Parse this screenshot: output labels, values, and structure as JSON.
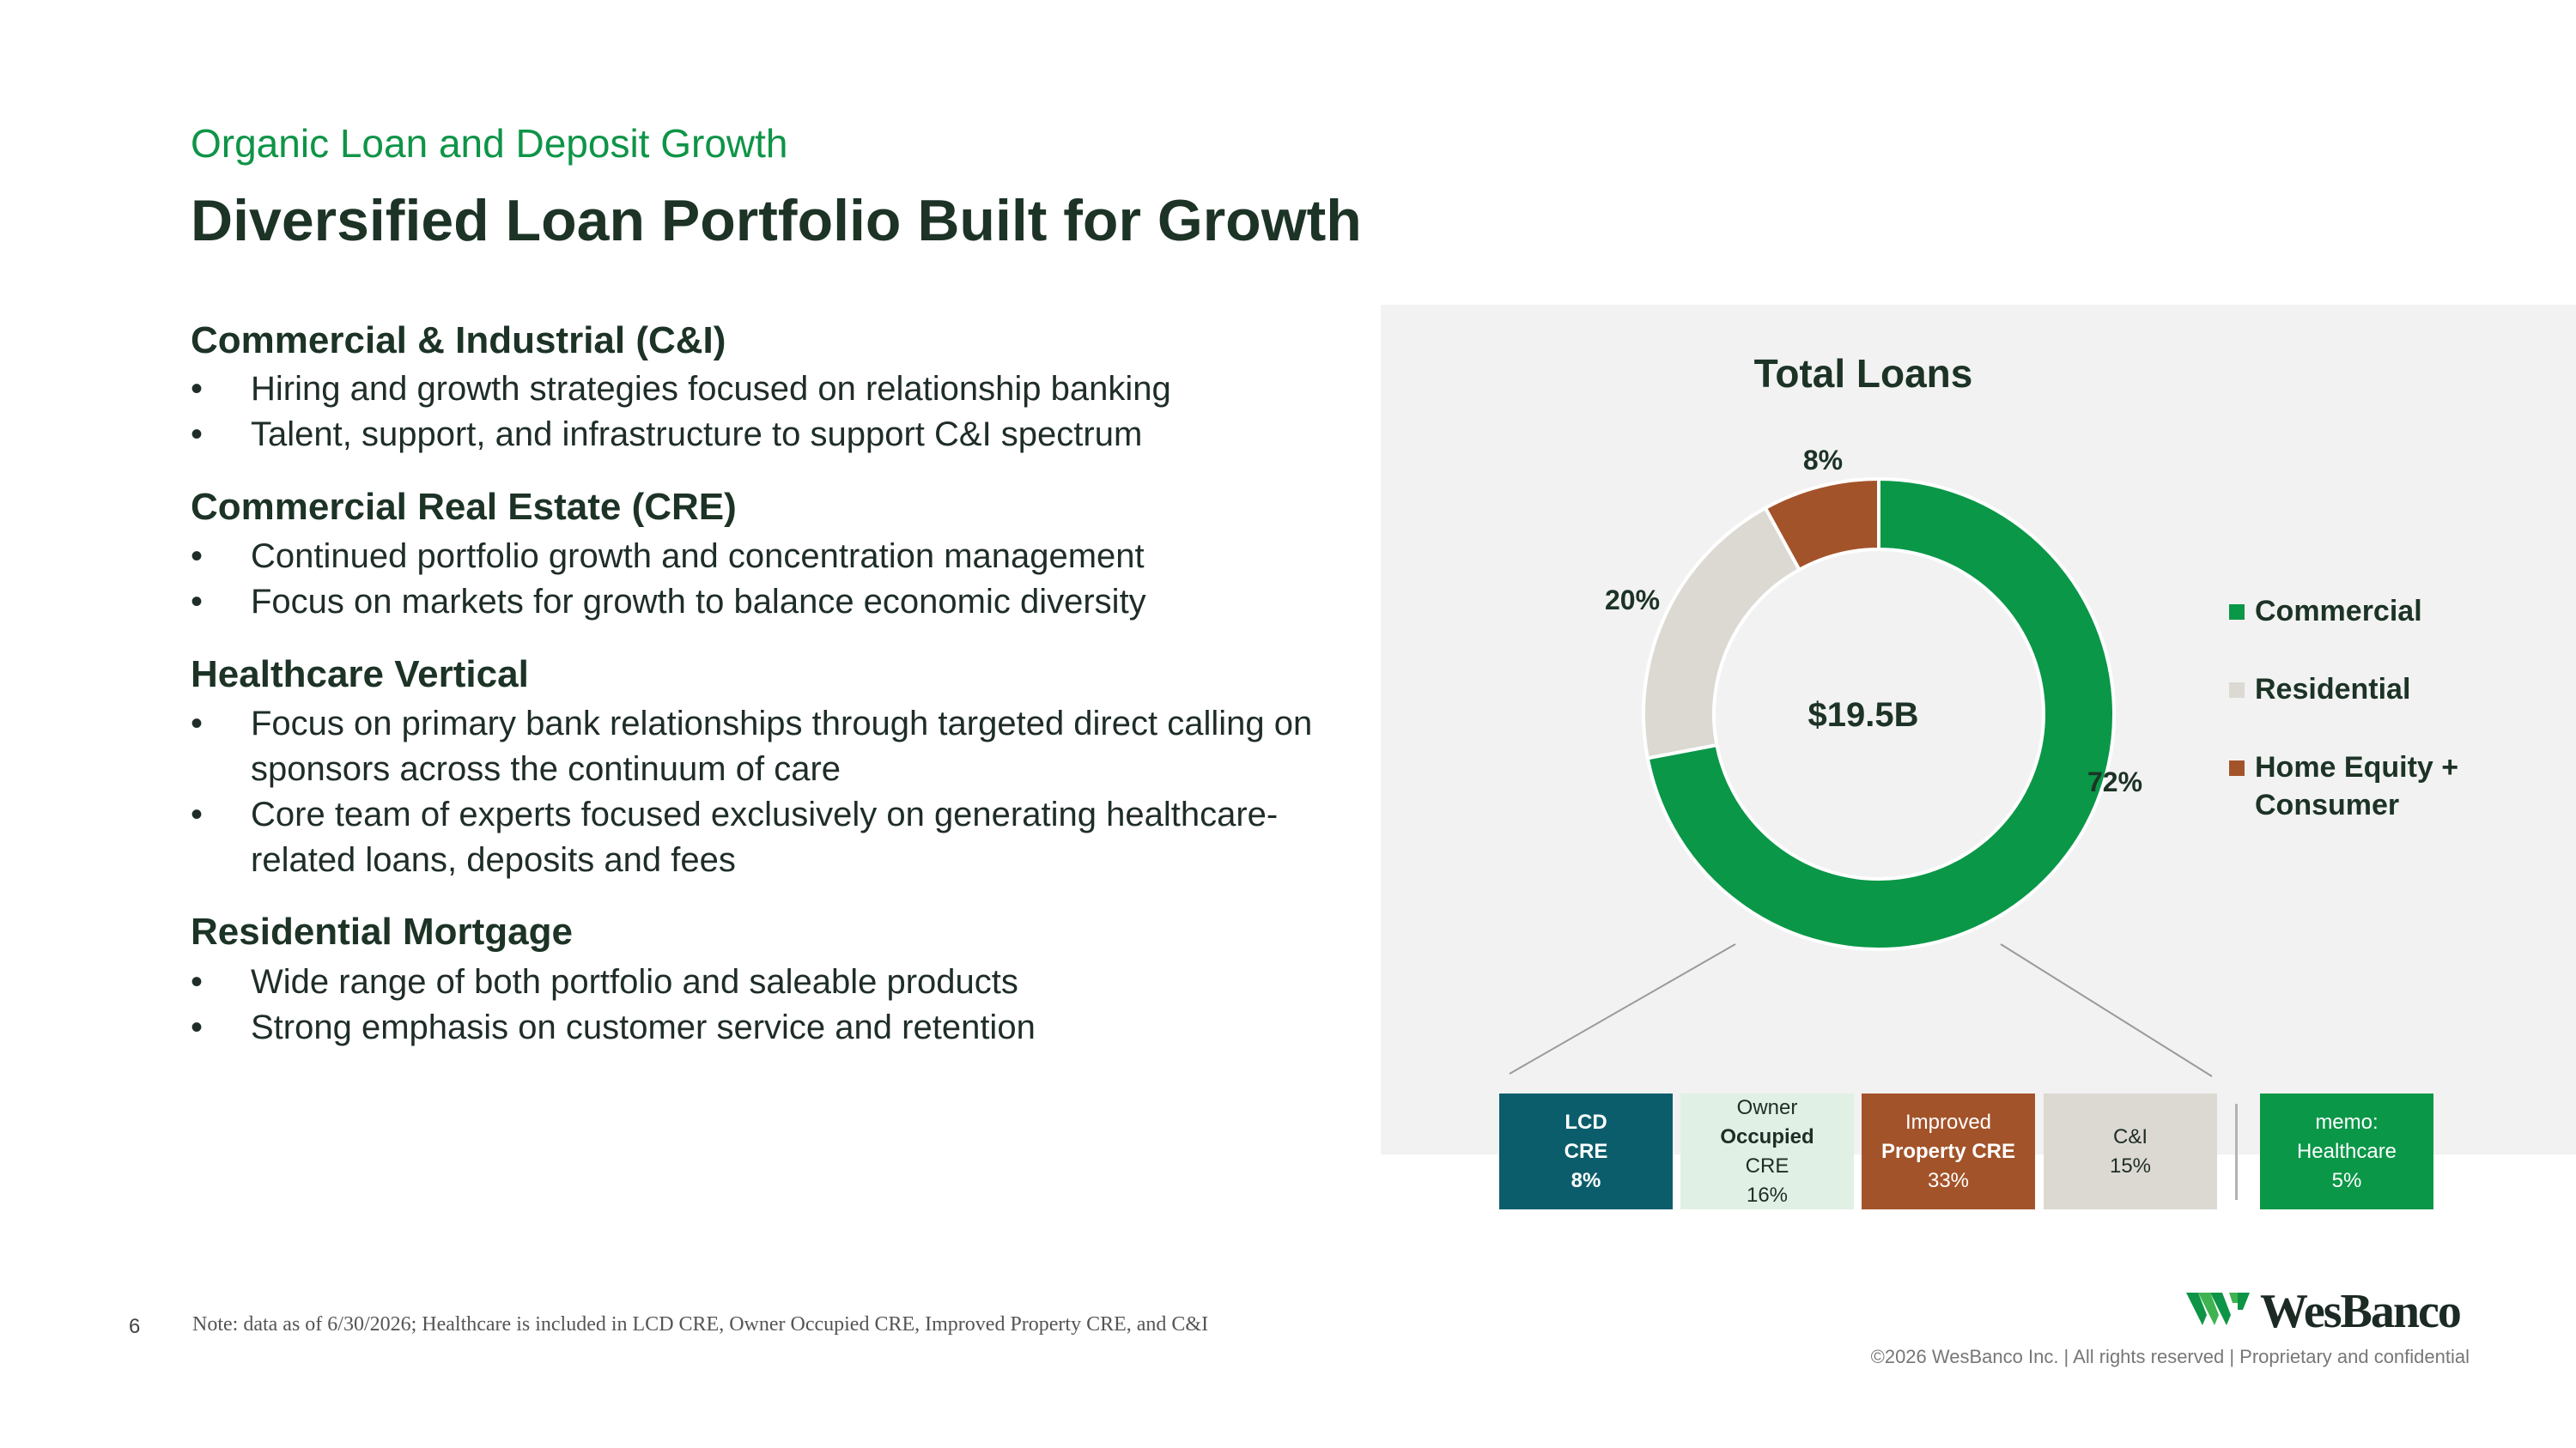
{
  "header": {
    "subtitle": "Organic Loan and Deposit Growth",
    "title": "Diversified Loan Portfolio Built for Growth"
  },
  "sections": [
    {
      "heading": "Commercial & Industrial (C&I)",
      "bullets": [
        "Hiring and growth strategies focused on relationship banking",
        "Talent, support, and infrastructure to support C&I spectrum"
      ]
    },
    {
      "heading": "Commercial Real Estate (CRE)",
      "bullets": [
        "Continued portfolio growth and concentration management",
        "Focus on markets for growth to balance economic diversity"
      ]
    },
    {
      "heading": "Healthcare Vertical",
      "bullets": [
        "Focus on primary bank relationships through targeted direct calling on sponsors across the continuum of care",
        "Core team of experts  focused exclusively on generating healthcare-related loans, deposits and fees"
      ]
    },
    {
      "heading": "Residential Mortgage",
      "bullets": [
        "Wide range of both portfolio and saleable products",
        "Strong emphasis on customer service and retention"
      ]
    }
  ],
  "bullet_char": "•",
  "chart_data": {
    "type": "pie",
    "title": "Total Loans",
    "center_label": "$19.5B",
    "categories": [
      "Commercial",
      "Residential",
      "Home Equity + Consumer"
    ],
    "values": [
      72,
      20,
      8
    ],
    "value_labels": [
      "72%",
      "20%",
      "8%"
    ],
    "colors": [
      "#0a9748",
      "#dcd9d3",
      "#a3532a"
    ],
    "legend_position": "right",
    "breakdown_of": "Commercial",
    "breakdown": [
      {
        "lines": [
          "LCD",
          "CRE",
          "8%"
        ],
        "bold": [
          true,
          true,
          true
        ],
        "bg": "#0c5d6b",
        "fg": "#ffffff"
      },
      {
        "lines": [
          "Owner",
          "Occupied",
          "CRE",
          "16%"
        ],
        "bold": [
          false,
          true,
          false,
          false
        ],
        "bg": "#e1f0e5",
        "fg": "#1f2d27"
      },
      {
        "lines": [
          "Improved",
          "Property CRE",
          "33%"
        ],
        "bold": [
          false,
          true,
          false
        ],
        "bg": "#a3532a",
        "fg": "#ffffff"
      },
      {
        "lines": [
          "C&I",
          "15%"
        ],
        "bold": [
          false,
          false
        ],
        "bg": "#dcd9d3",
        "fg": "#1f2d27"
      },
      {
        "lines": [
          "memo:",
          "Healthcare",
          "5%"
        ],
        "bold": [
          false,
          false,
          false
        ],
        "bg": "#0a9748",
        "fg": "#ffffff"
      }
    ]
  },
  "footer": {
    "page_number": "6",
    "note": "Note: data as of 6/30/2026; Healthcare is included in LCD CRE, Owner Occupied CRE, Improved Property CRE, and C&I",
    "logo_text": "WesBanco",
    "logo_mark": "wesbanco-w-icon",
    "copyright": "©2026 WesBanco Inc.  |  All rights reserved  |  Proprietary and confidential"
  }
}
